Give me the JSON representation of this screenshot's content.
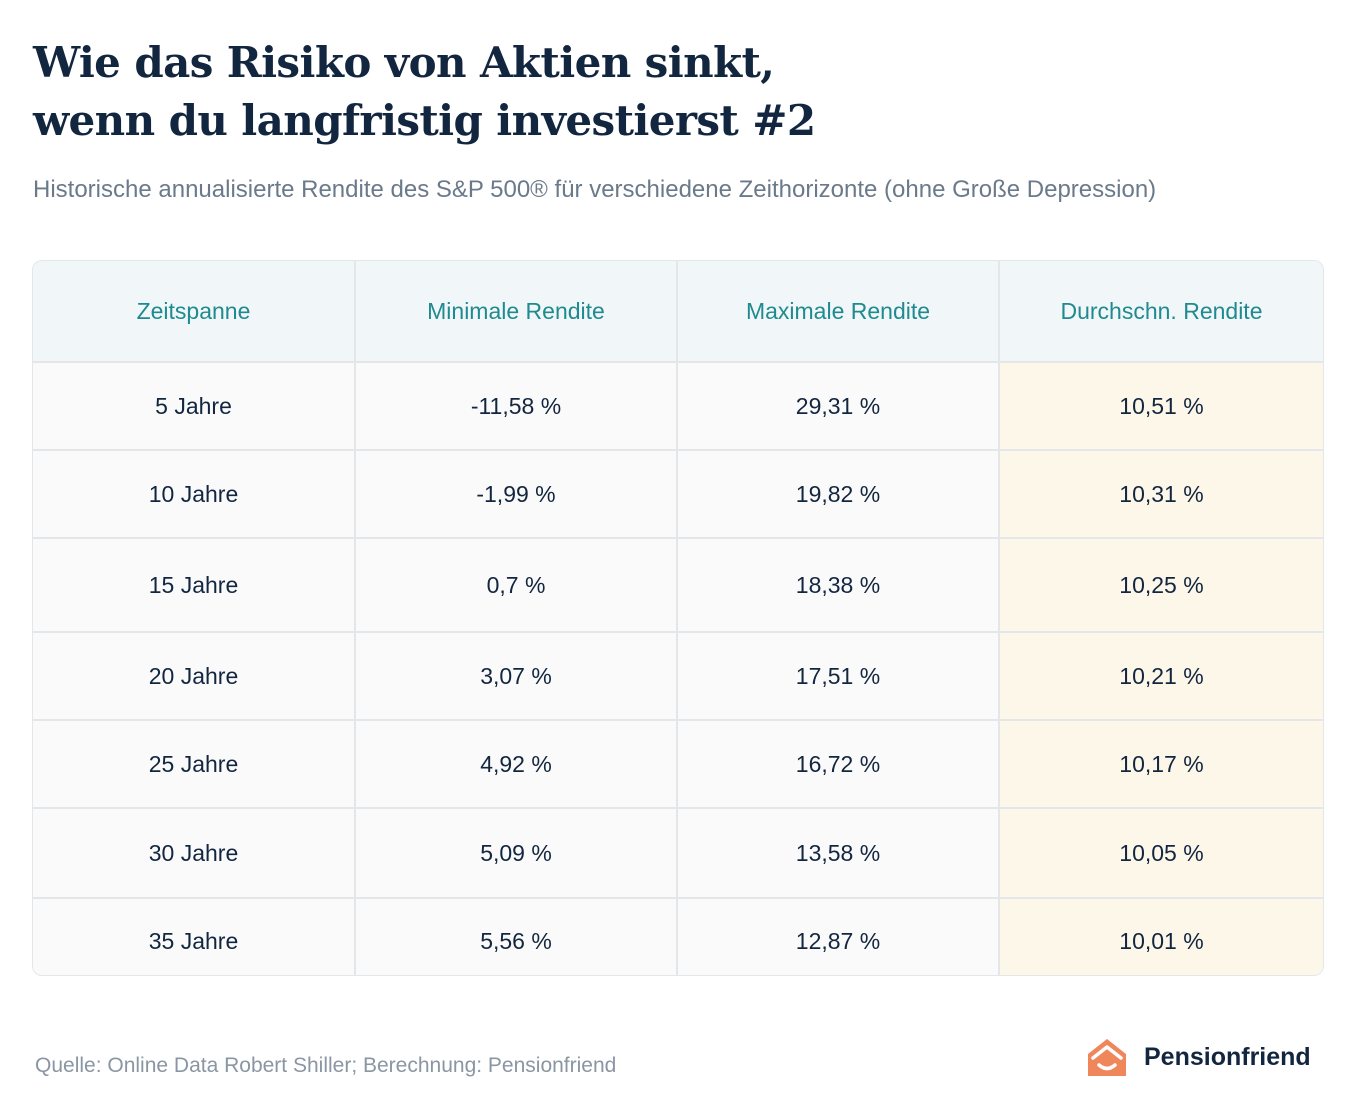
{
  "title_line1": "Wie das Risiko von Aktien sinkt,",
  "title_line2": "wenn du langfristig investierst #2",
  "subtitle": "Historische annualisierte Rendite des S&P 500® für verschiedene Zeithorizonte (ohne Große Depression)",
  "chart_data": {
    "type": "table",
    "title": "Wie das Risiko von Aktien sinkt, wenn du langfristig investierst #2",
    "subtitle": "Historische annualisierte Rendite des S&P 500® für verschiedene Zeithorizonte (ohne Große Depression)",
    "columns": [
      "Zeitspanne",
      "Minimale Rendite",
      "Maximale Rendite",
      "Durchschn. Rendite"
    ],
    "rows": [
      [
        "5 Jahre",
        "-11,58 %",
        "29,31 %",
        "10,51 %"
      ],
      [
        "10 Jahre",
        "-1,99 %",
        "19,82 %",
        "10,31 %"
      ],
      [
        "15 Jahre",
        "0,7 %",
        "18,38 %",
        "10,25 %"
      ],
      [
        "20 Jahre",
        "3,07 %",
        "17,51 %",
        "10,21 %"
      ],
      [
        "25 Jahre",
        "4,92 %",
        "16,72 %",
        "10,17 %"
      ],
      [
        "30 Jahre",
        "5,09 %",
        "13,58 %",
        "10,05 %"
      ],
      [
        "35 Jahre",
        "5,56 %",
        "12,87 %",
        "10,01 %"
      ]
    ],
    "highlight_column": "Durchschn. Rendite"
  },
  "footer": {
    "source": "Quelle: Online Data Robert Shiller; Berechnung: Pensionfriend",
    "brand": "Pensionfriend"
  },
  "colors": {
    "title": "#13263f",
    "header_text": "#1f8a8f",
    "header_bg": "#f1f7f9",
    "highlight_bg": "#fdf7ea",
    "logo": "#f0875a"
  },
  "icons": {
    "logo": "house-icon"
  }
}
